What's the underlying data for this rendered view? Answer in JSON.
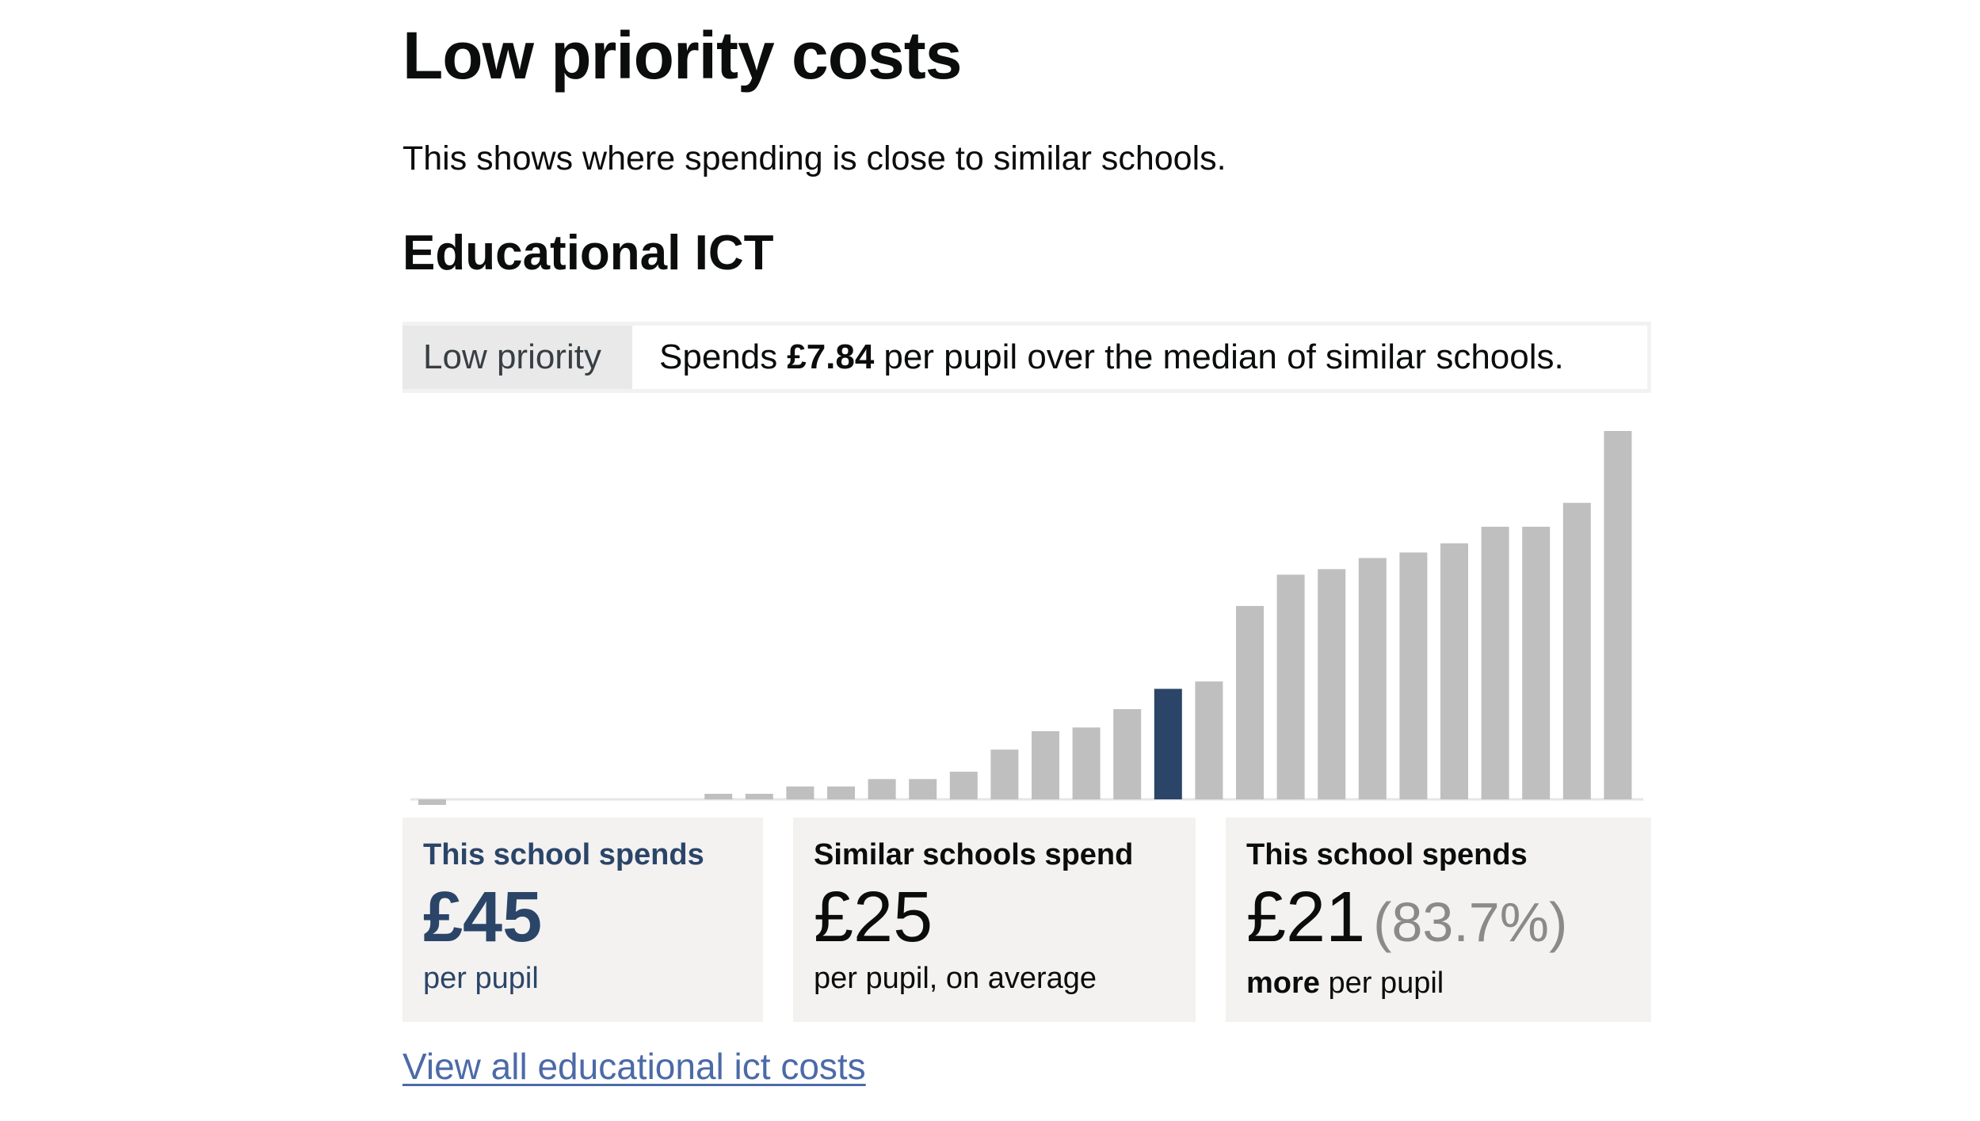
{
  "page": {
    "title": "Low priority costs",
    "intro": "This shows where spending is close to similar schools."
  },
  "section": {
    "title": "Educational ICT",
    "tag": "Low priority",
    "summary_prefix": "Spends",
    "summary_amount": "£7.84",
    "summary_suffix": "per pupil over the median of similar schools."
  },
  "cards": {
    "school": {
      "heading": "This school spends",
      "value": "£45",
      "sub": "per pupil"
    },
    "similar": {
      "heading": "Similar schools spend",
      "value": "£25",
      "sub": "per pupil, on average"
    },
    "difference": {
      "heading": "This school spends",
      "value": "£21",
      "percent": "(83.7%)",
      "sub_bold": "more",
      "sub_rest": "per pupil"
    }
  },
  "link": {
    "text": "View all educational ict costs"
  },
  "colors": {
    "bar": "#bfbfbf",
    "highlight": "#2b4568",
    "card_bg": "#f3f2f1",
    "link": "#4c6aa8"
  },
  "chart_data": {
    "type": "bar",
    "title": "",
    "xlabel": "",
    "ylabel": "",
    "ylim": [
      0,
      100
    ],
    "highlight_index": 18,
    "values": [
      -1.5,
      0,
      0,
      0,
      0,
      0,
      0,
      1.5,
      1.5,
      3.5,
      3.5,
      5.5,
      5.5,
      7.5,
      13.5,
      18.5,
      19.5,
      24.5,
      30,
      32,
      52.5,
      61,
      62.5,
      65.5,
      67,
      69.5,
      74,
      74,
      80.5,
      100
    ]
  }
}
